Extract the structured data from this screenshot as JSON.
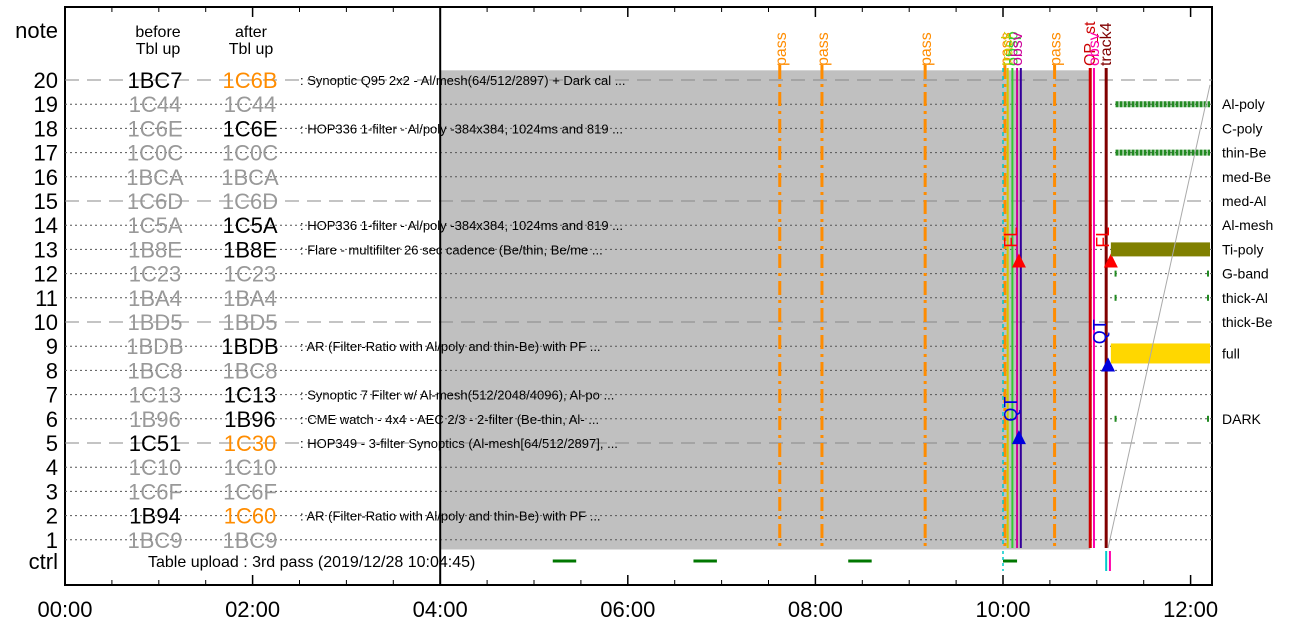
{
  "chart_data": {
    "type": "timeline",
    "x_axis": {
      "ticks": [
        "00:00",
        "02:00",
        "04:00",
        "06:00",
        "08:00",
        "10:00",
        "12:00"
      ],
      "range_hours": [
        0,
        12.25
      ]
    },
    "y_axis": {
      "top_label": "note",
      "bottom_label": "ctrl",
      "rows": [
        20,
        19,
        18,
        17,
        16,
        15,
        14,
        13,
        12,
        11,
        10,
        9,
        8,
        7,
        6,
        5,
        4,
        3,
        2,
        1
      ]
    },
    "column_headers": {
      "before": "before\nTbl up",
      "after": "after\nTbl up"
    },
    "tables": [
      {
        "row": 20,
        "before": "1BC7",
        "before_state": "active",
        "after": "1C6B",
        "after_state": "new",
        "desc": ": Synoptic Q95 2x2 - Al/mesh(64/512/2897) + Dark cal ..."
      },
      {
        "row": 19,
        "before": "1C44",
        "before_state": "inactive",
        "after": "1C44",
        "after_state": "inactive",
        "desc": ""
      },
      {
        "row": 18,
        "before": "1C6E",
        "before_state": "inactive",
        "after": "1C6E",
        "after_state": "active",
        "desc": ": HOP336 1-filter - Al/poly -384x384, 1024ms and 819 ..."
      },
      {
        "row": 17,
        "before": "1C0C",
        "before_state": "inactive",
        "after": "1C0C",
        "after_state": "inactive",
        "desc": ""
      },
      {
        "row": 16,
        "before": "1BCA",
        "before_state": "inactive",
        "after": "1BCA",
        "after_state": "inactive",
        "desc": ""
      },
      {
        "row": 15,
        "before": "1C6D",
        "before_state": "inactive",
        "after": "1C6D",
        "after_state": "inactive",
        "desc": ""
      },
      {
        "row": 14,
        "before": "1C5A",
        "before_state": "inactive",
        "after": "1C5A",
        "after_state": "active",
        "desc": ": HOP336 1-filter - Al/poly -384x384, 1024ms and 819 ..."
      },
      {
        "row": 13,
        "before": "1B8E",
        "before_state": "inactive",
        "after": "1B8E",
        "after_state": "active",
        "desc": ": Flare - multifilter 26 sec cadence (Be/thin, Be/me ..."
      },
      {
        "row": 12,
        "before": "1C23",
        "before_state": "inactive",
        "after": "1C23",
        "after_state": "inactive",
        "desc": ""
      },
      {
        "row": 11,
        "before": "1BA4",
        "before_state": "inactive",
        "after": "1BA4",
        "after_state": "inactive",
        "desc": ""
      },
      {
        "row": 10,
        "before": "1BD5",
        "before_state": "inactive",
        "after": "1BD5",
        "after_state": "inactive",
        "desc": ""
      },
      {
        "row": 9,
        "before": "1BDB",
        "before_state": "inactive",
        "after": "1BDB",
        "after_state": "active",
        "desc": ": AR (Filter-Ratio with Al/poly and thin-Be) with PF ..."
      },
      {
        "row": 8,
        "before": "1BC8",
        "before_state": "inactive",
        "after": "1BC8",
        "after_state": "inactive",
        "desc": ""
      },
      {
        "row": 7,
        "before": "1C13",
        "before_state": "inactive",
        "after": "1C13",
        "after_state": "active",
        "desc": ": Synoptic 7 Filter w/ Al-mesh(512/2048/4096), Al-po ..."
      },
      {
        "row": 6,
        "before": "1B96",
        "before_state": "inactive",
        "after": "1B96",
        "after_state": "active",
        "desc": ": CME watch - 4x4 - AEC 2/3 - 2-filter (Be-thin, Al- ..."
      },
      {
        "row": 5,
        "before": "1C51",
        "before_state": "active",
        "after": "1C30",
        "after_state": "new",
        "desc": ": HOP349 - 3-filter Synoptics (Al-mesh[64/512/2897], ..."
      },
      {
        "row": 4,
        "before": "1C10",
        "before_state": "inactive",
        "after": "1C10",
        "after_state": "inactive",
        "desc": ""
      },
      {
        "row": 3,
        "before": "1C6F",
        "before_state": "inactive",
        "after": "1C6F",
        "after_state": "inactive",
        "desc": ""
      },
      {
        "row": 2,
        "before": "1B94",
        "before_state": "active",
        "after": "1C60",
        "after_state": "new",
        "desc": ": AR (Filter-Ratio with Al/poly and thin-Be) with PF ..."
      },
      {
        "row": 1,
        "before": "1BC9",
        "before_state": "inactive",
        "after": "1BC9",
        "after_state": "inactive",
        "desc": ""
      }
    ],
    "active_block": {
      "start_hour": 4.0,
      "end_hour": 10.93,
      "row_top": 20.4,
      "row_bottom": 0.6
    },
    "ctrl_note": "Table upload : 3rd pass (2019/12/28 10:04:45)",
    "ctrl_segments": [
      [
        5.2,
        5.45
      ],
      [
        6.7,
        6.95
      ],
      [
        8.35,
        8.6
      ],
      [
        10.0,
        10.15
      ]
    ],
    "passes": [
      {
        "hour": 7.62,
        "label": "pass"
      },
      {
        "hour": 8.07,
        "label": "pass"
      },
      {
        "hour": 9.17,
        "label": "pass"
      },
      {
        "hour": 10.02,
        "label": "pass"
      },
      {
        "hour": 10.55,
        "label": "pass"
      }
    ],
    "vertical_markers": [
      {
        "hour": 10.05,
        "label": "track",
        "color": "#cccc00",
        "style": "solid"
      },
      {
        "hour": 10.1,
        "label": "obsp",
        "color": "#33cc33",
        "style": "solid"
      },
      {
        "hour": 10.15,
        "label": "obsv",
        "color": "#cc0099",
        "style": "solid"
      },
      {
        "hour": 10.19,
        "label": "",
        "color": "#330099",
        "style": "solid"
      },
      {
        "hour": 10.93,
        "label": "OP_st",
        "color": "#cc0000",
        "style": "solid"
      },
      {
        "hour": 10.97,
        "label": "obsv",
        "color": "#ff00aa",
        "style": "solid"
      },
      {
        "hour": 11.1,
        "label": "track4",
        "color": "#800000",
        "style": "solid"
      }
    ],
    "event_flags": [
      {
        "hour": 10.17,
        "label": "FL",
        "row": 13.5,
        "color": "#ff0000",
        "triangle_row": 12.5
      },
      {
        "hour": 11.15,
        "label": "FL",
        "row": 13.5,
        "color": "#ff0000",
        "triangle_row": 12.5
      },
      {
        "hour": 10.17,
        "label": "QT",
        "row": 6.4,
        "color": "#0000dd",
        "triangle_row": 5.2
      },
      {
        "hour": 11.12,
        "label": "QT",
        "row": 9.6,
        "color": "#0000dd",
        "triangle_row": 8.2
      }
    ],
    "filters": [
      {
        "name": "Al-poly",
        "row": 19,
        "color": "#228b22",
        "start": 11.2,
        "end": 12.25,
        "style": "dotted"
      },
      {
        "name": "C-poly",
        "row": 18,
        "color": "#228b22",
        "start": null,
        "end": null,
        "style": "none"
      },
      {
        "name": "thin-Be",
        "row": 17,
        "color": "#228b22",
        "start": 11.2,
        "end": 12.25,
        "style": "dotted"
      },
      {
        "name": "med-Be",
        "row": 16,
        "color": "#228b22",
        "start": null,
        "end": null,
        "style": "none"
      },
      {
        "name": "med-Al",
        "row": 15,
        "color": "#228b22",
        "start": null,
        "end": null,
        "style": "none"
      },
      {
        "name": "Al-mesh",
        "row": 14,
        "color": "#228b22",
        "start": null,
        "end": null,
        "style": "none"
      },
      {
        "name": "Ti-poly",
        "row": 13,
        "color": "#808000",
        "start": 11.15,
        "end": 12.25,
        "style": "bar"
      },
      {
        "name": "G-band",
        "row": 12,
        "color": "#228b22",
        "start": 11.2,
        "end": 12.25,
        "style": "ticks"
      },
      {
        "name": "thick-Al",
        "row": 11,
        "color": "#228b22",
        "start": 11.2,
        "end": 12.25,
        "style": "ticks"
      },
      {
        "name": "thick-Be",
        "row": 10,
        "color": "#228b22",
        "start": null,
        "end": null,
        "style": "none"
      },
      {
        "name": "full",
        "row": 8.7,
        "color": "#ffd700",
        "start": 11.15,
        "end": 12.25,
        "style": "thickbar"
      },
      {
        "name": "DARK",
        "row": 6,
        "color": "#228b22",
        "start": 11.2,
        "end": 12.25,
        "style": "ticks"
      }
    ]
  }
}
